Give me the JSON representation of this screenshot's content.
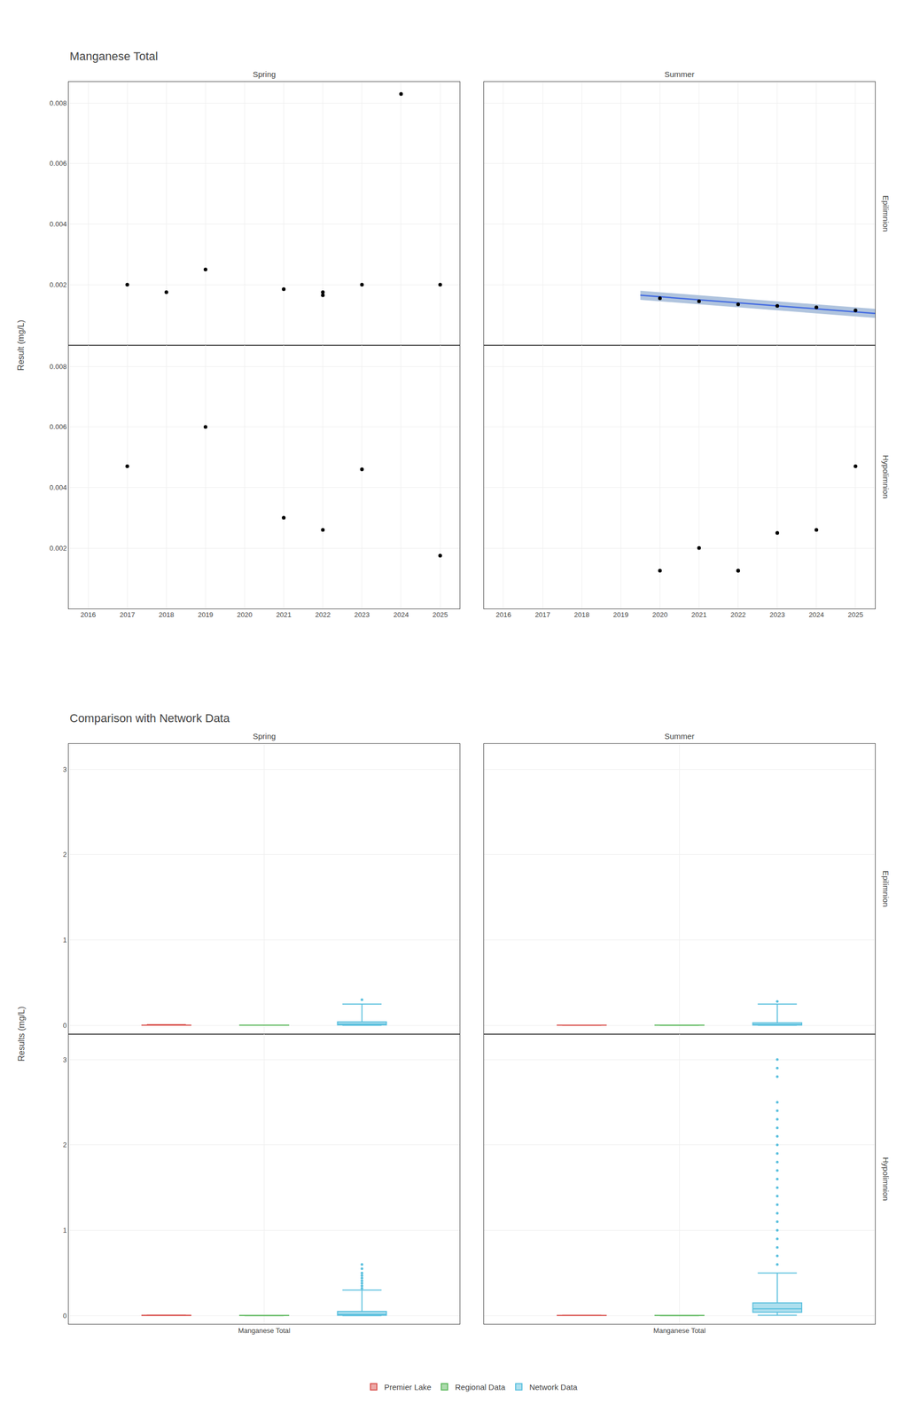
{
  "chart_data": [
    {
      "type": "scatter",
      "title": "Manganese Total",
      "ylabel": "Result (mg/L)",
      "columns": [
        "Spring",
        "Summer"
      ],
      "rows": [
        "Epilimnion",
        "Hypolimnion"
      ],
      "xlim": [
        2015.5,
        2025.5
      ],
      "xticks": [
        2016,
        2017,
        2018,
        2019,
        2020,
        2021,
        2022,
        2023,
        2024,
        2025
      ],
      "ylim": [
        0,
        0.0087
      ],
      "yticks": [
        0.002,
        0.004,
        0.006,
        0.008
      ],
      "grid": true,
      "panels": [
        {
          "column": "Spring",
          "row": "Epilimnion",
          "series": [
            {
              "type": "scatter",
              "color": "#000000",
              "x": [
                2017,
                2018,
                2019,
                2021,
                2022,
                2022,
                2023,
                2024,
                2025
              ],
              "values": [
                0.002,
                0.00175,
                0.0025,
                0.00185,
                0.00175,
                0.00165,
                0.002,
                0.0083,
                0.002
              ]
            }
          ]
        },
        {
          "column": "Summer",
          "row": "Epilimnion",
          "series": [
            {
              "type": "band",
              "color": "#b0c4de",
              "x": [
                2019.5,
                2025.5
              ],
              "lower": [
                0.0015,
                0.0009
              ],
              "upper": [
                0.0018,
                0.0012
              ]
            },
            {
              "type": "line",
              "color": "#4169e1",
              "x": [
                2019.5,
                2025.5
              ],
              "values": [
                0.00165,
                0.00105
              ]
            },
            {
              "type": "scatter",
              "color": "#000000",
              "x": [
                2020,
                2021,
                2022,
                2023,
                2024,
                2025
              ],
              "values": [
                0.00155,
                0.00145,
                0.00135,
                0.0013,
                0.00125,
                0.00115
              ]
            }
          ]
        },
        {
          "column": "Spring",
          "row": "Hypolimnion",
          "series": [
            {
              "type": "scatter",
              "color": "#000000",
              "x": [
                2017,
                2019,
                2021,
                2022,
                2023,
                2025
              ],
              "values": [
                0.0047,
                0.006,
                0.003,
                0.0026,
                0.0046,
                0.00175
              ]
            }
          ]
        },
        {
          "column": "Summer",
          "row": "Hypolimnion",
          "series": [
            {
              "type": "scatter",
              "color": "#000000",
              "x": [
                2020,
                2021,
                2022,
                2022,
                2023,
                2024,
                2025
              ],
              "values": [
                0.00125,
                0.002,
                0.00125,
                0.00125,
                0.0025,
                0.0026,
                0.0047
              ]
            }
          ]
        }
      ]
    },
    {
      "type": "box",
      "title": "Comparison with Network Data",
      "ylabel": "Results (mg/L)",
      "columns": [
        "Spring",
        "Summer"
      ],
      "rows": [
        "Epilimnion",
        "Hypolimnion"
      ],
      "categories": [
        "Manganese Total"
      ],
      "ylim": [
        -0.1,
        3.3
      ],
      "yticks": [
        0,
        1,
        2,
        3
      ],
      "grid": true,
      "series": [
        {
          "name": "Premier Lake",
          "color": "#d9534f"
        },
        {
          "name": "Regional Data",
          "color": "#5cb85c"
        },
        {
          "name": "Network Data",
          "color": "#5bc0de"
        }
      ],
      "panels": [
        {
          "column": "Spring",
          "row": "Epilimnion",
          "boxes": [
            {
              "median": 0.002,
              "q1": 0.00175,
              "q3": 0.00225,
              "whislo": 0.00155,
              "whishi": 0.0083,
              "fliers": []
            },
            {
              "median": 0.002,
              "q1": 0.0018,
              "q3": 0.00215,
              "whislo": 0.00155,
              "whishi": 0.0025,
              "fliers": []
            },
            {
              "median": 0.015,
              "q1": 0.005,
              "q3": 0.04,
              "whislo": 0.001,
              "whishi": 0.25,
              "fliers": [
                0.3
              ]
            }
          ]
        },
        {
          "column": "Summer",
          "row": "Epilimnion",
          "boxes": [
            {
              "median": 0.00135,
              "q1": 0.00125,
              "q3": 0.00155,
              "whislo": 0.00115,
              "whishi": 0.00165,
              "fliers": []
            },
            {
              "median": 0.0014,
              "q1": 0.00125,
              "q3": 0.0015,
              "whislo": 0.0011,
              "whishi": 0.0016,
              "fliers": []
            },
            {
              "median": 0.01,
              "q1": 0.004,
              "q3": 0.03,
              "whislo": 0.001,
              "whishi": 0.25,
              "fliers": [
                0.28
              ]
            }
          ]
        },
        {
          "column": "Spring",
          "row": "Hypolimnion",
          "boxes": [
            {
              "median": 0.003,
              "q1": 0.0022,
              "q3": 0.005,
              "whislo": 0.00175,
              "whishi": 0.006,
              "fliers": []
            },
            {
              "median": 0.002,
              "q1": 0.0015,
              "q3": 0.003,
              "whislo": 0.001,
              "whishi": 0.004,
              "fliers": []
            },
            {
              "median": 0.015,
              "q1": 0.005,
              "q3": 0.05,
              "whislo": 0.001,
              "whishi": 0.3,
              "fliers": [
                0.32,
                0.35,
                0.38,
                0.41,
                0.44,
                0.47,
                0.5,
                0.55,
                0.6
              ]
            }
          ]
        },
        {
          "column": "Summer",
          "row": "Hypolimnion",
          "boxes": [
            {
              "median": 0.002,
              "q1": 0.00125,
              "q3": 0.003,
              "whislo": 0.00115,
              "whishi": 0.0047,
              "fliers": []
            },
            {
              "median": 0.002,
              "q1": 0.00125,
              "q3": 0.003,
              "whislo": 0.001,
              "whishi": 0.004,
              "fliers": []
            },
            {
              "median": 0.08,
              "q1": 0.04,
              "q3": 0.15,
              "whislo": 0.005,
              "whishi": 0.5,
              "fliers": [
                2.8,
                2.9,
                3.0,
                1.8,
                1.9,
                2.0,
                2.1,
                2.2,
                2.3,
                2.4,
                2.5,
                1.5,
                1.6,
                1.7,
                1.3,
                1.4,
                1.0,
                1.1,
                1.2,
                0.8,
                0.9,
                0.7,
                0.6
              ]
            }
          ]
        }
      ]
    }
  ]
}
